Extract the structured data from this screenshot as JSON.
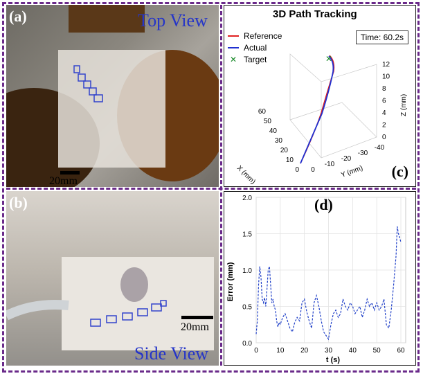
{
  "figure": {
    "frame_color": "#6a2a8a"
  },
  "panel_a": {
    "letter": "(a)",
    "view_label": "Top View",
    "scale_label": "20mm"
  },
  "panel_b": {
    "letter": "(b)",
    "view_label": "Side View",
    "scale_label": "20mm"
  },
  "panel_c": {
    "letter": "(c)",
    "title": "3D Path Tracking",
    "time_label": "Time: 60.2s",
    "legend": [
      {
        "label": "Reference",
        "color": "#e02020",
        "marker": "line"
      },
      {
        "label": "Actual",
        "color": "#2030d0",
        "marker": "line"
      },
      {
        "label": "Target",
        "color": "#1a8a2a",
        "marker": "x"
      }
    ],
    "axis_x": {
      "label": "X (mm)",
      "ticks": [
        "0",
        "10",
        "20",
        "30",
        "40",
        "50",
        "60"
      ]
    },
    "axis_y": {
      "label": "Y (mm)",
      "ticks": [
        "0",
        "-10",
        "-20",
        "-30",
        "-40"
      ]
    },
    "axis_z": {
      "label": "Z (mm)",
      "ticks": [
        "0",
        "2",
        "4",
        "6",
        "8",
        "10",
        "12"
      ]
    }
  },
  "chart_data": {
    "type": "line",
    "title": "",
    "xlabel": "t (s)",
    "ylabel": "Error (mm)",
    "xlim": [
      0,
      62
    ],
    "ylim": [
      0,
      2.0
    ],
    "xticks": [
      "0",
      "10",
      "20",
      "30",
      "40",
      "50",
      "60"
    ],
    "yticks": [
      "0.0",
      "0.5",
      "1.0",
      "1.5",
      "2.0"
    ],
    "grid": true,
    "series": [
      {
        "color": "#2040c8",
        "style": "dashed",
        "x": [
          0,
          0.5,
          1,
          1.5,
          2,
          2.5,
          3,
          3.5,
          4,
          4.5,
          5,
          5.5,
          6,
          6.5,
          7,
          7.5,
          8,
          8.5,
          9,
          9.5,
          10,
          11,
          12,
          13,
          14,
          15,
          16,
          17,
          18,
          19,
          20,
          21,
          22,
          23,
          24,
          25,
          26,
          27,
          28,
          29,
          30,
          31,
          32,
          33,
          34,
          35,
          36,
          37,
          38,
          39,
          40,
          41,
          42,
          43,
          44,
          45,
          46,
          47,
          48,
          49,
          50,
          51,
          52,
          53,
          54,
          55,
          56,
          57,
          58,
          58.5,
          59,
          59.5,
          60
        ],
        "y": [
          0.12,
          0.3,
          0.8,
          1.05,
          0.9,
          0.6,
          0.55,
          0.62,
          0.5,
          0.75,
          1.0,
          1.05,
          0.8,
          0.55,
          0.6,
          0.5,
          0.45,
          0.3,
          0.22,
          0.28,
          0.25,
          0.35,
          0.4,
          0.3,
          0.2,
          0.15,
          0.28,
          0.35,
          0.3,
          0.55,
          0.6,
          0.42,
          0.3,
          0.2,
          0.55,
          0.65,
          0.5,
          0.3,
          0.15,
          0.1,
          0.05,
          0.25,
          0.4,
          0.45,
          0.35,
          0.4,
          0.6,
          0.5,
          0.45,
          0.55,
          0.5,
          0.4,
          0.45,
          0.5,
          0.35,
          0.45,
          0.6,
          0.5,
          0.55,
          0.45,
          0.55,
          0.45,
          0.5,
          0.6,
          0.25,
          0.2,
          0.45,
          0.8,
          1.2,
          1.6,
          1.5,
          1.45,
          1.38
        ]
      }
    ]
  },
  "panel_d": {
    "letter": "(d)"
  }
}
